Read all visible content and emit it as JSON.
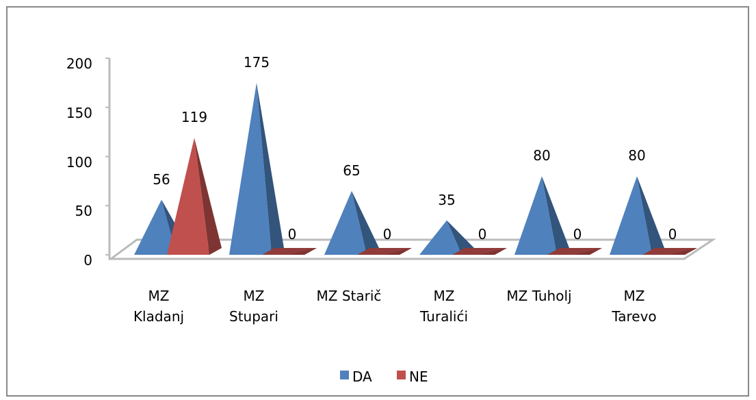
{
  "chart_data": {
    "type": "bar",
    "categories": [
      "MZ\nKladanj",
      "MZ\nStupari",
      "MZ Starič",
      "MZ\nTuralići",
      "MZ Tuholj",
      "MZ\nTarevo"
    ],
    "series": [
      {
        "name": "DA",
        "color": "#4f81bd",
        "values": [
          56,
          175,
          65,
          35,
          80,
          80
        ]
      },
      {
        "name": "NE",
        "color": "#c0504d",
        "values": [
          119,
          0,
          0,
          0,
          0,
          0
        ]
      }
    ],
    "ylim": [
      0,
      200
    ],
    "yticks": [
      0,
      50,
      100,
      150,
      200
    ],
    "legend": "bottom"
  }
}
